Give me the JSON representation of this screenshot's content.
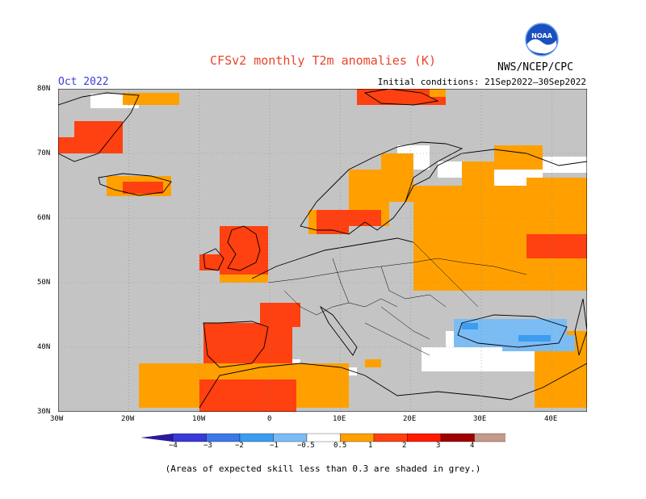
{
  "header": {
    "title": "CFSv2 monthly T2m anomalies (K)",
    "month": "Oct 2022",
    "initial_conditions": "Initial conditions: 21Sep2022–30Sep2022",
    "agency": "NWS/NCEP/CPC",
    "logo_text": "NOAA"
  },
  "map": {
    "lat_labels": [
      "80N",
      "70N",
      "60N",
      "50N",
      "40N",
      "30N"
    ],
    "lon_labels": [
      "30W",
      "20W",
      "10W",
      "0",
      "10E",
      "20E",
      "30E",
      "40E"
    ],
    "land_color": "#c4c4c4",
    "anomaly_colors": {
      "cold_strong": "#3a3ad8",
      "cold": "#3c8cf0",
      "cool": "#7cbcf4",
      "neutral": "#ffffff",
      "warm": "#ffa000",
      "warmer": "#ff4010",
      "hot": "#a00000"
    }
  },
  "colorbar": {
    "labels": [
      "−4",
      "−3",
      "−2",
      "−1",
      "−0.5",
      "0.5",
      "1",
      "2",
      "3",
      "4"
    ],
    "colors": [
      "#2a1a9a",
      "#3a3ad8",
      "#3c78e8",
      "#3c9cf0",
      "#7cbcf4",
      "#ffffff",
      "#ffa000",
      "#ff4010",
      "#ff1a00",
      "#a00000",
      "#c49a8a",
      "#7a4a3a"
    ]
  },
  "footnote": "(Areas of expected skill less than 0.3 are shaded in grey.)"
}
